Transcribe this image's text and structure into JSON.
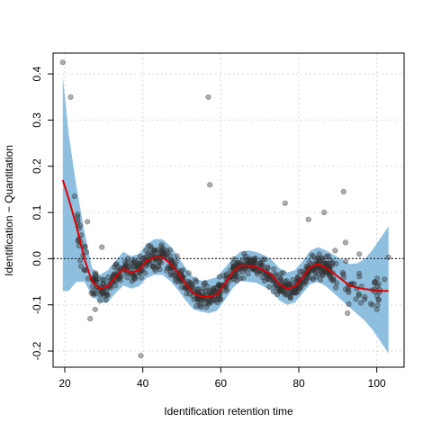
{
  "chart_data": {
    "type": "scatter",
    "title": "",
    "xlabel": "Identification retention time",
    "ylabel": "Identification − Quantitation",
    "xlim": [
      17,
      107
    ],
    "ylim": [
      -0.235,
      0.445
    ],
    "x_ticks": [
      20,
      40,
      60,
      80,
      100
    ],
    "y_ticks": [
      -0.2,
      -0.1,
      0.0,
      0.1,
      0.2,
      0.3,
      0.4
    ],
    "y_tick_labels": [
      "-0.2",
      "-0.1",
      "0.0",
      "0.1",
      "0.2",
      "0.3",
      "0.4"
    ],
    "grid": true,
    "reference_line_y": 0,
    "colors": {
      "points": "#333333",
      "band": "#8fbfdf",
      "fit": "#e00000",
      "grid": "#d8d8d8",
      "reference": "#333333"
    },
    "fit_line": {
      "name": "loess fit",
      "x": [
        19.5,
        21,
        23,
        25,
        27,
        29,
        31,
        33,
        35,
        37,
        39,
        41,
        43,
        45,
        47,
        49,
        51,
        53,
        55,
        57,
        59,
        61,
        63,
        65,
        67,
        69,
        71,
        73,
        75,
        77,
        79,
        81,
        83,
        85,
        87,
        89,
        91,
        93,
        95,
        97,
        99,
        101,
        103
      ],
      "y": [
        0.17,
        0.13,
        0.07,
        0.0,
        -0.05,
        -0.065,
        -0.06,
        -0.04,
        -0.022,
        -0.03,
        -0.025,
        -0.005,
        0.003,
        0.003,
        -0.01,
        -0.03,
        -0.055,
        -0.075,
        -0.082,
        -0.083,
        -0.078,
        -0.055,
        -0.03,
        -0.015,
        -0.015,
        -0.018,
        -0.025,
        -0.035,
        -0.055,
        -0.065,
        -0.06,
        -0.04,
        -0.018,
        -0.012,
        -0.02,
        -0.032,
        -0.045,
        -0.058,
        -0.063,
        -0.066,
        -0.068,
        -0.07,
        -0.07
      ]
    },
    "confidence_band": {
      "name": "confidence band",
      "x": [
        19.5,
        21,
        23,
        25,
        27,
        29,
        31,
        33,
        35,
        37,
        39,
        41,
        43,
        45,
        47,
        49,
        51,
        53,
        55,
        57,
        59,
        61,
        63,
        65,
        67,
        69,
        71,
        73,
        75,
        77,
        79,
        81,
        83,
        85,
        87,
        89,
        91,
        93,
        95,
        97,
        99,
        101,
        103
      ],
      "upper": [
        0.395,
        0.27,
        0.155,
        0.06,
        -0.02,
        -0.035,
        -0.025,
        -0.005,
        0.015,
        0.005,
        0.01,
        0.032,
        0.042,
        0.042,
        0.028,
        0.005,
        -0.02,
        -0.04,
        -0.048,
        -0.045,
        -0.04,
        -0.02,
        0.0,
        0.015,
        0.018,
        0.015,
        0.008,
        -0.002,
        -0.02,
        -0.03,
        -0.025,
        -0.005,
        0.018,
        0.025,
        0.018,
        0.008,
        -0.002,
        -0.012,
        -0.01,
        0.0,
        0.02,
        0.045,
        0.07
      ],
      "lower": [
        -0.07,
        -0.07,
        -0.05,
        -0.05,
        -0.08,
        -0.095,
        -0.095,
        -0.075,
        -0.058,
        -0.065,
        -0.06,
        -0.042,
        -0.035,
        -0.035,
        -0.048,
        -0.068,
        -0.09,
        -0.11,
        -0.115,
        -0.118,
        -0.113,
        -0.09,
        -0.065,
        -0.048,
        -0.05,
        -0.052,
        -0.06,
        -0.07,
        -0.09,
        -0.1,
        -0.095,
        -0.075,
        -0.055,
        -0.05,
        -0.06,
        -0.075,
        -0.09,
        -0.105,
        -0.12,
        -0.135,
        -0.155,
        -0.18,
        -0.205
      ]
    },
    "highlight_points": {
      "x": [
        19.5,
        21.5,
        22.5,
        25.8,
        26.5,
        27.8,
        29.5,
        39.5,
        56.8,
        57.2,
        76.5,
        82.5,
        86.5,
        91.5,
        92,
        92.5,
        95.5,
        100,
        103,
        102
      ],
      "y": [
        0.425,
        0.35,
        0.135,
        0.08,
        -0.13,
        -0.11,
        0.025,
        -0.21,
        0.35,
        0.16,
        0.12,
        0.085,
        0.1,
        0.145,
        0.035,
        -0.118,
        0.01,
        -0.11,
        0.003,
        -0.045
      ]
    }
  }
}
